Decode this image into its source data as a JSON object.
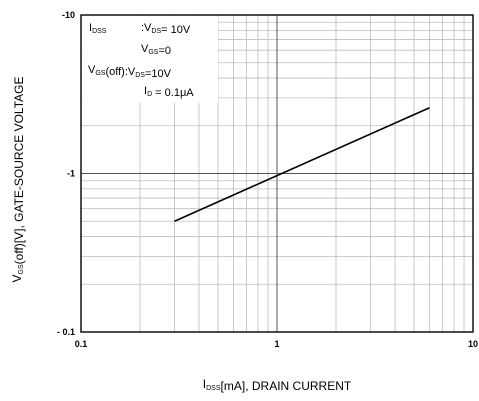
{
  "chart_data": {
    "type": "line",
    "xscale": "log",
    "yscale": "log",
    "xlim": [
      0.1,
      10
    ],
    "ylim": [
      -0.1,
      -10
    ],
    "x_ticks": [
      "0.1",
      "1",
      "10"
    ],
    "y_ticks": [
      "-10",
      "-1",
      "- 0.1"
    ],
    "xlabel": {
      "main": "I",
      "sub": "DSS",
      "rest": "[mA], DRAIN CURRENT"
    },
    "ylabel": {
      "main": "V",
      "sub": "GS",
      "rest": "(off)[V], GATE-SOURCE VOLTAGE"
    },
    "grid": true,
    "series": [
      {
        "x": [
          0.3,
          6.0
        ],
        "y": [
          -0.5,
          -2.6
        ]
      }
    ],
    "annotations": [
      {
        "parts": [
          {
            "t": "I"
          },
          {
            "t": "DSS",
            "sub": true
          }
        ]
      },
      {
        "parts": [
          {
            "t": ":V"
          },
          {
            "t": "DS",
            "sub": true
          },
          {
            "t": "= 10V"
          }
        ]
      },
      {
        "parts": [
          {
            "t": "V"
          },
          {
            "t": "GS",
            "sub": true
          },
          {
            "t": "=0"
          }
        ]
      },
      {
        "parts": [
          {
            "t": "V"
          },
          {
            "t": "GS",
            "sub": true
          },
          {
            "t": "(off):V"
          },
          {
            "t": "DS",
            "sub": true
          },
          {
            "t": "=10V"
          }
        ]
      },
      {
        "parts": [
          {
            "t": "I"
          },
          {
            "t": "D",
            "sub": true
          },
          {
            "t": " = 0.1μA"
          }
        ]
      }
    ]
  }
}
